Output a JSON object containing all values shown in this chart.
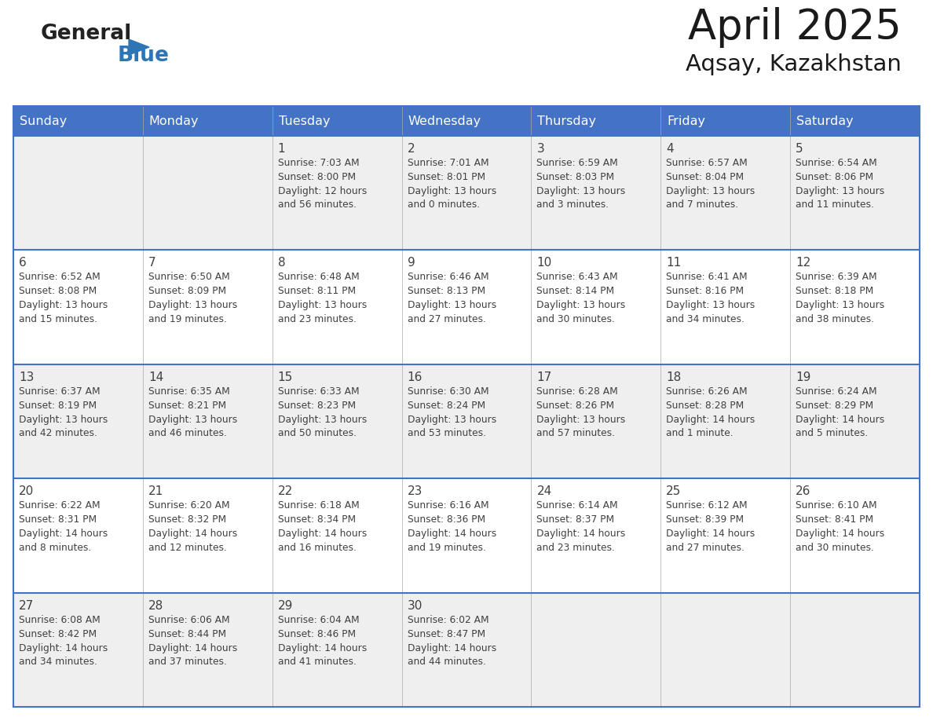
{
  "title": "April 2025",
  "subtitle": "Aqsay, Kazakhstan",
  "header_color": "#4472C4",
  "header_text_color": "#FFFFFF",
  "day_names": [
    "Sunday",
    "Monday",
    "Tuesday",
    "Wednesday",
    "Thursday",
    "Friday",
    "Saturday"
  ],
  "background_color": "#FFFFFF",
  "row_bg_colors": [
    "#EFEFEF",
    "#FFFFFF",
    "#EFEFEF",
    "#FFFFFF",
    "#EFEFEF"
  ],
  "border_color": "#4472C4",
  "text_color": "#404040",
  "logo_general_color": "#222222",
  "logo_blue_color": "#2E75B6",
  "title_color": "#1a1a1a",
  "weeks": [
    [
      {
        "day": "",
        "sunrise": "",
        "sunset": "",
        "daylight": ""
      },
      {
        "day": "",
        "sunrise": "",
        "sunset": "",
        "daylight": ""
      },
      {
        "day": "1",
        "sunrise": "Sunrise: 7:03 AM",
        "sunset": "Sunset: 8:00 PM",
        "daylight": "Daylight: 12 hours\nand 56 minutes."
      },
      {
        "day": "2",
        "sunrise": "Sunrise: 7:01 AM",
        "sunset": "Sunset: 8:01 PM",
        "daylight": "Daylight: 13 hours\nand 0 minutes."
      },
      {
        "day": "3",
        "sunrise": "Sunrise: 6:59 AM",
        "sunset": "Sunset: 8:03 PM",
        "daylight": "Daylight: 13 hours\nand 3 minutes."
      },
      {
        "day": "4",
        "sunrise": "Sunrise: 6:57 AM",
        "sunset": "Sunset: 8:04 PM",
        "daylight": "Daylight: 13 hours\nand 7 minutes."
      },
      {
        "day": "5",
        "sunrise": "Sunrise: 6:54 AM",
        "sunset": "Sunset: 8:06 PM",
        "daylight": "Daylight: 13 hours\nand 11 minutes."
      }
    ],
    [
      {
        "day": "6",
        "sunrise": "Sunrise: 6:52 AM",
        "sunset": "Sunset: 8:08 PM",
        "daylight": "Daylight: 13 hours\nand 15 minutes."
      },
      {
        "day": "7",
        "sunrise": "Sunrise: 6:50 AM",
        "sunset": "Sunset: 8:09 PM",
        "daylight": "Daylight: 13 hours\nand 19 minutes."
      },
      {
        "day": "8",
        "sunrise": "Sunrise: 6:48 AM",
        "sunset": "Sunset: 8:11 PM",
        "daylight": "Daylight: 13 hours\nand 23 minutes."
      },
      {
        "day": "9",
        "sunrise": "Sunrise: 6:46 AM",
        "sunset": "Sunset: 8:13 PM",
        "daylight": "Daylight: 13 hours\nand 27 minutes."
      },
      {
        "day": "10",
        "sunrise": "Sunrise: 6:43 AM",
        "sunset": "Sunset: 8:14 PM",
        "daylight": "Daylight: 13 hours\nand 30 minutes."
      },
      {
        "day": "11",
        "sunrise": "Sunrise: 6:41 AM",
        "sunset": "Sunset: 8:16 PM",
        "daylight": "Daylight: 13 hours\nand 34 minutes."
      },
      {
        "day": "12",
        "sunrise": "Sunrise: 6:39 AM",
        "sunset": "Sunset: 8:18 PM",
        "daylight": "Daylight: 13 hours\nand 38 minutes."
      }
    ],
    [
      {
        "day": "13",
        "sunrise": "Sunrise: 6:37 AM",
        "sunset": "Sunset: 8:19 PM",
        "daylight": "Daylight: 13 hours\nand 42 minutes."
      },
      {
        "day": "14",
        "sunrise": "Sunrise: 6:35 AM",
        "sunset": "Sunset: 8:21 PM",
        "daylight": "Daylight: 13 hours\nand 46 minutes."
      },
      {
        "day": "15",
        "sunrise": "Sunrise: 6:33 AM",
        "sunset": "Sunset: 8:23 PM",
        "daylight": "Daylight: 13 hours\nand 50 minutes."
      },
      {
        "day": "16",
        "sunrise": "Sunrise: 6:30 AM",
        "sunset": "Sunset: 8:24 PM",
        "daylight": "Daylight: 13 hours\nand 53 minutes."
      },
      {
        "day": "17",
        "sunrise": "Sunrise: 6:28 AM",
        "sunset": "Sunset: 8:26 PM",
        "daylight": "Daylight: 13 hours\nand 57 minutes."
      },
      {
        "day": "18",
        "sunrise": "Sunrise: 6:26 AM",
        "sunset": "Sunset: 8:28 PM",
        "daylight": "Daylight: 14 hours\nand 1 minute."
      },
      {
        "day": "19",
        "sunrise": "Sunrise: 6:24 AM",
        "sunset": "Sunset: 8:29 PM",
        "daylight": "Daylight: 14 hours\nand 5 minutes."
      }
    ],
    [
      {
        "day": "20",
        "sunrise": "Sunrise: 6:22 AM",
        "sunset": "Sunset: 8:31 PM",
        "daylight": "Daylight: 14 hours\nand 8 minutes."
      },
      {
        "day": "21",
        "sunrise": "Sunrise: 6:20 AM",
        "sunset": "Sunset: 8:32 PM",
        "daylight": "Daylight: 14 hours\nand 12 minutes."
      },
      {
        "day": "22",
        "sunrise": "Sunrise: 6:18 AM",
        "sunset": "Sunset: 8:34 PM",
        "daylight": "Daylight: 14 hours\nand 16 minutes."
      },
      {
        "day": "23",
        "sunrise": "Sunrise: 6:16 AM",
        "sunset": "Sunset: 8:36 PM",
        "daylight": "Daylight: 14 hours\nand 19 minutes."
      },
      {
        "day": "24",
        "sunrise": "Sunrise: 6:14 AM",
        "sunset": "Sunset: 8:37 PM",
        "daylight": "Daylight: 14 hours\nand 23 minutes."
      },
      {
        "day": "25",
        "sunrise": "Sunrise: 6:12 AM",
        "sunset": "Sunset: 8:39 PM",
        "daylight": "Daylight: 14 hours\nand 27 minutes."
      },
      {
        "day": "26",
        "sunrise": "Sunrise: 6:10 AM",
        "sunset": "Sunset: 8:41 PM",
        "daylight": "Daylight: 14 hours\nand 30 minutes."
      }
    ],
    [
      {
        "day": "27",
        "sunrise": "Sunrise: 6:08 AM",
        "sunset": "Sunset: 8:42 PM",
        "daylight": "Daylight: 14 hours\nand 34 minutes."
      },
      {
        "day": "28",
        "sunrise": "Sunrise: 6:06 AM",
        "sunset": "Sunset: 8:44 PM",
        "daylight": "Daylight: 14 hours\nand 37 minutes."
      },
      {
        "day": "29",
        "sunrise": "Sunrise: 6:04 AM",
        "sunset": "Sunset: 8:46 PM",
        "daylight": "Daylight: 14 hours\nand 41 minutes."
      },
      {
        "day": "30",
        "sunrise": "Sunrise: 6:02 AM",
        "sunset": "Sunset: 8:47 PM",
        "daylight": "Daylight: 14 hours\nand 44 minutes."
      },
      {
        "day": "",
        "sunrise": "",
        "sunset": "",
        "daylight": ""
      },
      {
        "day": "",
        "sunrise": "",
        "sunset": "",
        "daylight": ""
      },
      {
        "day": "",
        "sunrise": "",
        "sunset": "",
        "daylight": ""
      }
    ]
  ]
}
